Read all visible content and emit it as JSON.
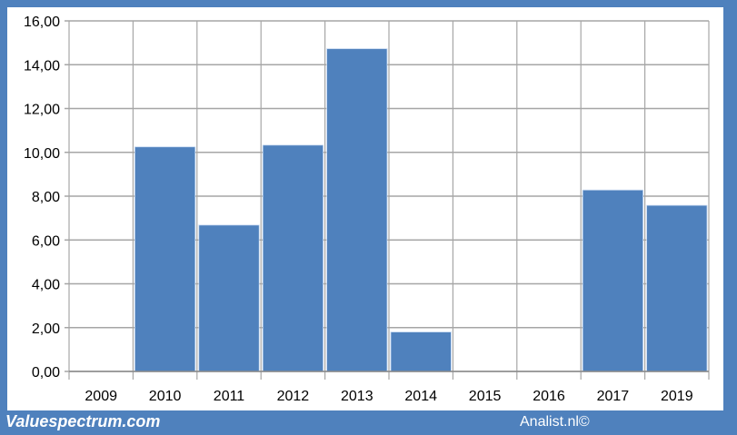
{
  "chart_data": {
    "type": "bar",
    "categories": [
      "2009",
      "2010",
      "2011",
      "2012",
      "2013",
      "2014",
      "2015",
      "2016",
      "2017",
      "2019"
    ],
    "values": [
      0,
      10.25,
      6.68,
      10.33,
      14.73,
      1.8,
      0,
      0,
      8.28,
      7.58
    ],
    "title": "",
    "xlabel": "",
    "ylabel": "",
    "ylim": [
      0,
      16
    ],
    "yticks": [
      "0,00",
      "2,00",
      "4,00",
      "6,00",
      "8,00",
      "10,00",
      "12,00",
      "14,00",
      "16,00"
    ],
    "grid": true,
    "legend": "none",
    "bar_color": "#4f81bd",
    "frame_color": "#4f81bd"
  },
  "footer": {
    "brand": "Valuespectrum.com",
    "credit": "Analist.nl©"
  }
}
